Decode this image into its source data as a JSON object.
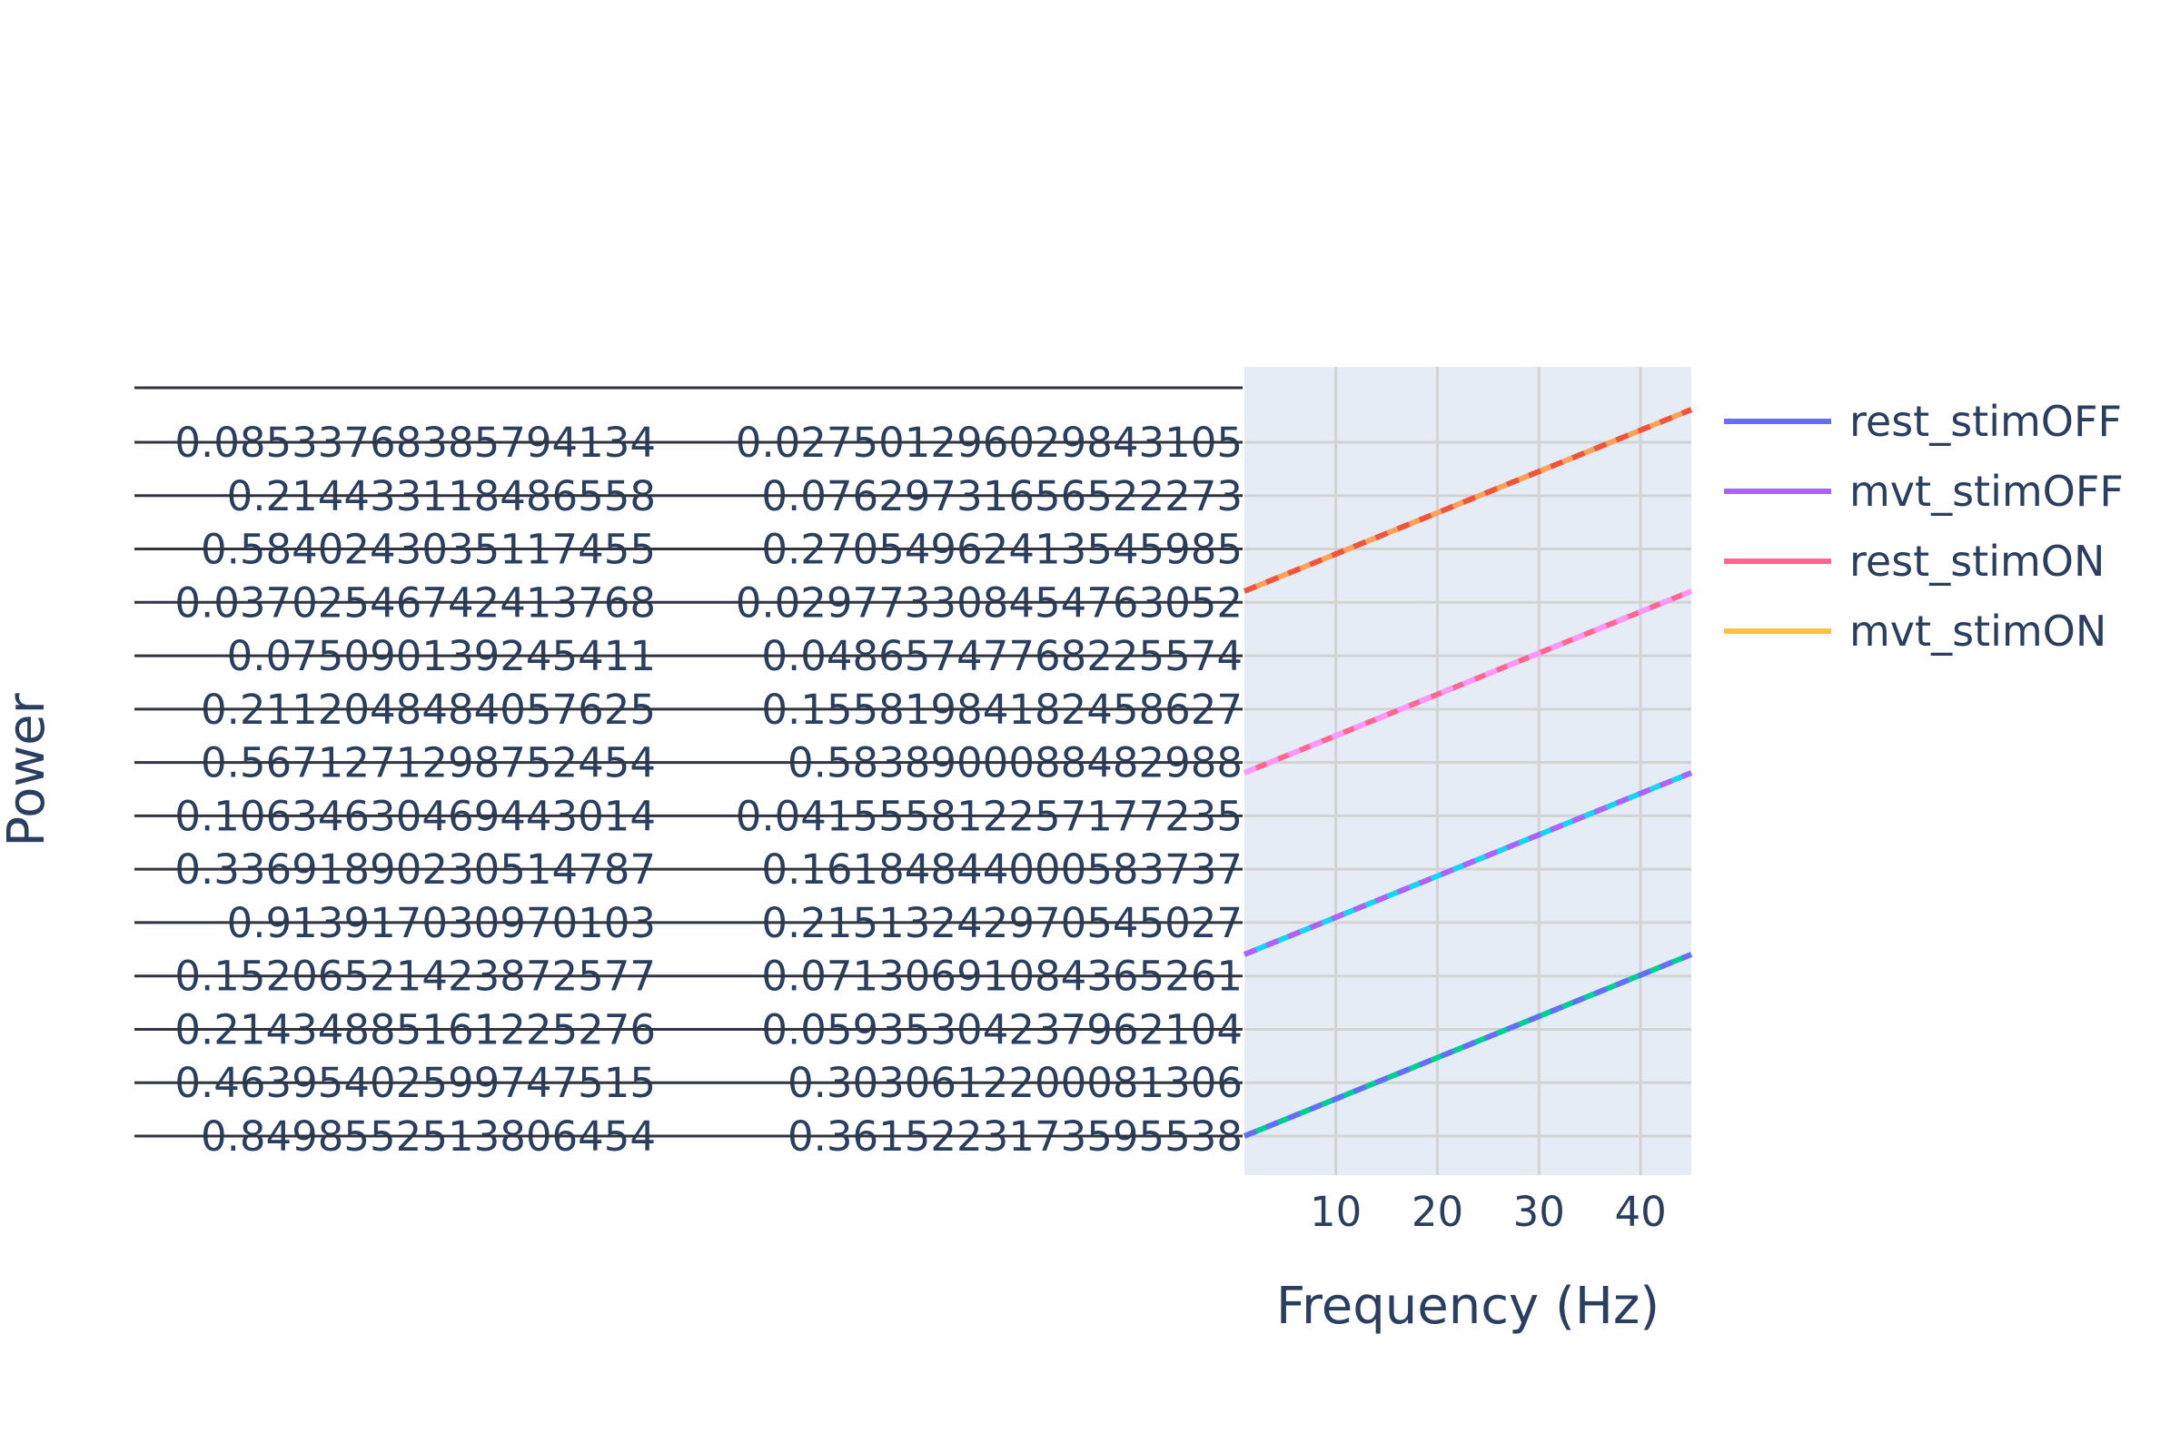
{
  "chart_data": {
    "type": "line",
    "xlabel": "Frequency (Hz)",
    "ylabel": "Power",
    "xlim": [
      1,
      45
    ],
    "x_ticks": [
      10,
      20,
      30,
      40
    ],
    "grid": true,
    "legend_position": "right",
    "plot_bg": "#e5ecf6",
    "y_tick_pairs": [
      [
        "0.08533768385794134",
        "0.02750129602984310​5"
      ],
      [
        "0.214433118486558",
        "0.07629731656522273"
      ],
      [
        "0.5840243035117455",
        "0.2705496241354598​5"
      ],
      [
        "0.0370254674241376​8",
        "0.0297733084547630​52"
      ],
      [
        "0.075090139245411",
        "0.04865747768225574"
      ],
      [
        "0.2112048484057625",
        "0.1558198418245862​7"
      ],
      [
        "0.5671271298752454",
        "0.5838900088482988"
      ],
      [
        "0.1063463046944301​4",
        "0.0415558122571772​35"
      ],
      [
        "0.3369189023051478​7",
        "0.1618484400058373​7"
      ],
      [
        "0.913917030970103",
        "0.2151324297054502​7"
      ],
      [
        "0.1520652142387257​7",
        "0.0713069108436526​1"
      ],
      [
        "0.2143488516122527​6",
        "0.0593530423796210​4"
      ],
      [
        "0.4639540259974751​5",
        "0.3030612200081306"
      ],
      [
        "0.8498552513806454",
        "0.3615223173595538"
      ]
    ],
    "series": [
      {
        "name": "rest_stimOFF",
        "color": "#636efa",
        "dash": "solid",
        "x": [
          1,
          45
        ],
        "y_band": [
          0,
          3
        ]
      },
      {
        "name": "mvt_stimOFF",
        "color": "#ab63fa",
        "dash": "solid",
        "x": [
          1,
          45
        ],
        "y_band": [
          0,
          3
        ]
      },
      {
        "name": "rest_stimON",
        "color": "#ff6692",
        "dash": "solid",
        "x": [
          1,
          45
        ],
        "y_band": [
          0,
          3
        ]
      },
      {
        "name": "mvt_stimON",
        "color": "#ffc13b",
        "dash": "solid",
        "x": [
          1,
          45
        ],
        "y_band": [
          0,
          3
        ]
      }
    ],
    "lines": [
      {
        "color": "#00cc96",
        "overlay": "#636efa",
        "y": [
          0,
          1
        ]
      },
      {
        "color": "#19d3f3",
        "overlay": "#ab63fa",
        "y": [
          1,
          2
        ]
      },
      {
        "color": "#ff6692",
        "overlay": "#ff97ff",
        "y": [
          2,
          3
        ]
      },
      {
        "color": "#ffa15a",
        "overlay": "#ef553b",
        "y": [
          3,
          4
        ]
      }
    ]
  }
}
